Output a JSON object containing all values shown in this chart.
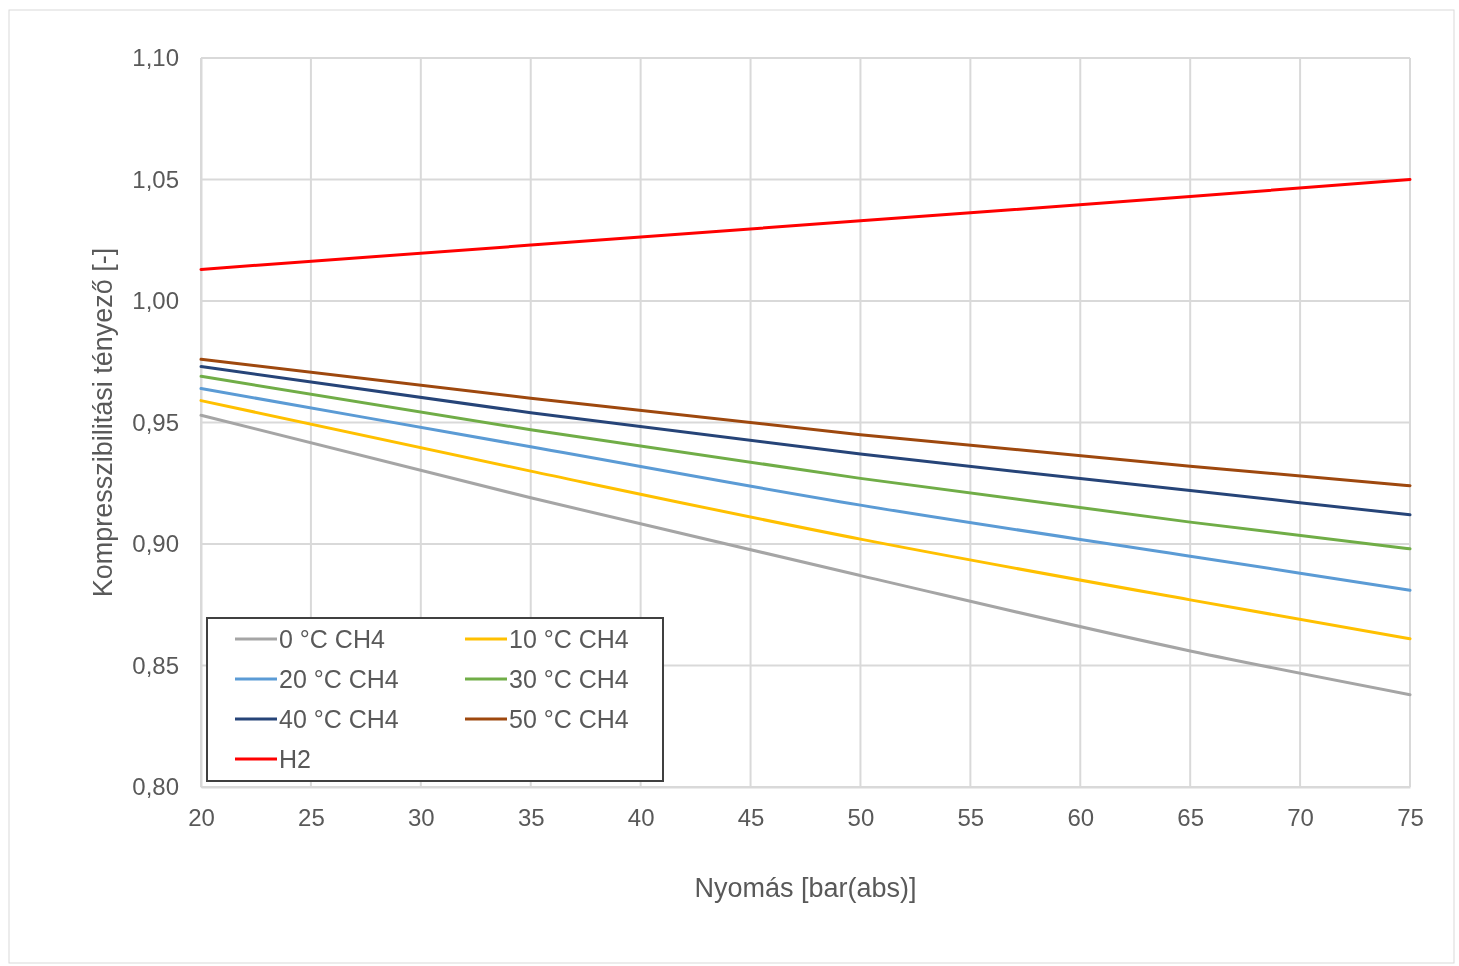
{
  "chart_data": {
    "type": "line",
    "xlabel": "Nyomás  [bar(abs)]",
    "ylabel": "Kompresszibilitási  tényező  [-]",
    "x": [
      20,
      35,
      50,
      65,
      75
    ],
    "series": [
      {
        "name": "0 °C CH4",
        "color": "#a5a5a5",
        "values": [
          0.953,
          0.919,
          0.887,
          0.856,
          0.838
        ]
      },
      {
        "name": "10 °C CH4",
        "color": "#ffc000",
        "values": [
          0.959,
          0.93,
          0.902,
          0.877,
          0.861
        ]
      },
      {
        "name": "20 °C CH4",
        "color": "#5b9bd5",
        "values": [
          0.964,
          0.94,
          0.916,
          0.895,
          0.881
        ]
      },
      {
        "name": "30 °C CH4",
        "color": "#70ad47",
        "values": [
          0.969,
          0.947,
          0.927,
          0.909,
          0.898
        ]
      },
      {
        "name": "40 °C CH4",
        "color": "#264478",
        "values": [
          0.973,
          0.954,
          0.937,
          0.922,
          0.912
        ]
      },
      {
        "name": "50 °C CH4",
        "color": "#9e480e",
        "values": [
          0.976,
          0.96,
          0.945,
          0.932,
          0.924
        ]
      },
      {
        "name": "H2",
        "color": "#ff0000",
        "values": [
          1.013,
          1.023,
          1.033,
          1.043,
          1.05
        ]
      }
    ],
    "xlim": [
      20,
      75
    ],
    "xticks": [
      20,
      25,
      30,
      35,
      40,
      45,
      50,
      55,
      60,
      65,
      70,
      75
    ],
    "ylim": [
      0.8,
      1.1
    ],
    "yticks": [
      {
        "value": 0.8,
        "label": "0,80"
      },
      {
        "value": 0.85,
        "label": "0,85"
      },
      {
        "value": 0.9,
        "label": "0,90"
      },
      {
        "value": 0.95,
        "label": "0,95"
      },
      {
        "value": 1.0,
        "label": "1,00"
      },
      {
        "value": 1.05,
        "label": "1,05"
      },
      {
        "value": 1.1,
        "label": "1,10"
      }
    ],
    "grid": true,
    "legend": "bottom left",
    "marker": "none",
    "line_style": "solid"
  }
}
